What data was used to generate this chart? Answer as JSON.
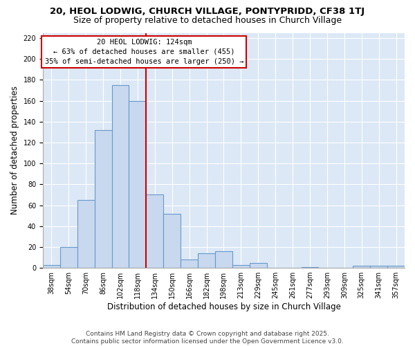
{
  "title_line1": "20, HEOL LODWIG, CHURCH VILLAGE, PONTYPRIDD, CF38 1TJ",
  "title_line2": "Size of property relative to detached houses in Church Village",
  "xlabel": "Distribution of detached houses by size in Church Village",
  "ylabel": "Number of detached properties",
  "bar_labels": [
    "38sqm",
    "54sqm",
    "70sqm",
    "86sqm",
    "102sqm",
    "118sqm",
    "134sqm",
    "150sqm",
    "166sqm",
    "182sqm",
    "198sqm",
    "213sqm",
    "229sqm",
    "245sqm",
    "261sqm",
    "277sqm",
    "293sqm",
    "309sqm",
    "325sqm",
    "341sqm",
    "357sqm"
  ],
  "bar_values": [
    3,
    20,
    65,
    132,
    175,
    160,
    70,
    52,
    8,
    14,
    16,
    3,
    5,
    0,
    0,
    1,
    0,
    0,
    2,
    2,
    2
  ],
  "bar_color": "#c8d8ee",
  "bar_edgecolor": "#6699cc",
  "vline_x_label": "118sqm",
  "vline_color": "#cc0000",
  "annotation_lines": [
    "20 HEOL LODWIG: 124sqm",
    "← 63% of detached houses are smaller (455)",
    "35% of semi-detached houses are larger (250) →"
  ],
  "annotation_box_color": "#cc0000",
  "ylim": [
    0,
    225
  ],
  "yticks": [
    0,
    20,
    40,
    60,
    80,
    100,
    120,
    140,
    160,
    180,
    200,
    220
  ],
  "background_color": "#dce8f5",
  "grid_color": "#ffffff",
  "fig_facecolor": "#ffffff",
  "footer_line1": "Contains HM Land Registry data © Crown copyright and database right 2025.",
  "footer_line2": "Contains public sector information licensed under the Open Government Licence v3.0.",
  "title_fontsize": 9.5,
  "subtitle_fontsize": 9,
  "axis_label_fontsize": 8.5,
  "tick_fontsize": 7,
  "annotation_fontsize": 7.5,
  "footer_fontsize": 6.5
}
